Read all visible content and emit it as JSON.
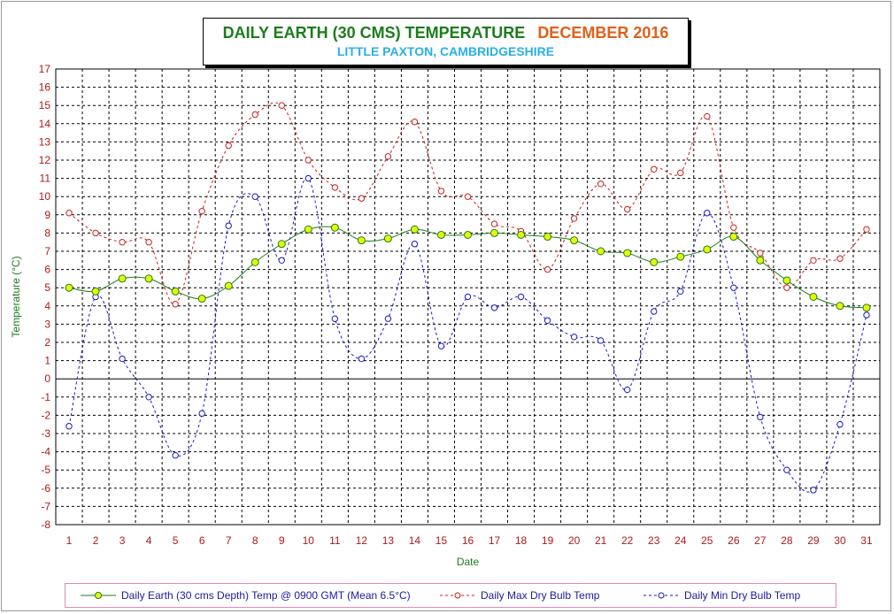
{
  "title": {
    "main": "DAILY EARTH (30 CMS) TEMPERATURE",
    "month": "DECEMBER 2016",
    "subtitle": "LITTLE PAXTON, CAMBRIDGESHIRE"
  },
  "colors": {
    "earth": "#1c7d1c",
    "earth_marker": "#e8ff00",
    "max": "#c82020",
    "min": "#1818c8",
    "axis_text": "#1c7d1c",
    "tick_text": "#b01818",
    "grid": "#000000"
  },
  "chart_data": {
    "type": "line",
    "xlabel": "Date",
    "ylabel": "Temperature (°C)",
    "x": [
      1,
      2,
      3,
      4,
      5,
      6,
      7,
      8,
      9,
      10,
      11,
      12,
      13,
      14,
      15,
      16,
      17,
      18,
      19,
      20,
      21,
      22,
      23,
      24,
      25,
      26,
      27,
      28,
      29,
      30,
      31
    ],
    "ylim": [
      -8,
      17
    ],
    "yticks": [
      17,
      16,
      15,
      14,
      13,
      12,
      11,
      10,
      9,
      8,
      7,
      6,
      5,
      4,
      3,
      2,
      1,
      0,
      -1,
      -2,
      -3,
      -4,
      -5,
      -6,
      -7,
      -8
    ],
    "grid": true,
    "legend_position": "bottom",
    "series": [
      {
        "name": "Daily Earth (30 cms Depth) Temp @ 0900 GMT (Mean 6.5°C)",
        "style": "solid",
        "values": [
          5.0,
          4.8,
          5.5,
          5.5,
          4.8,
          4.4,
          5.1,
          6.4,
          7.4,
          8.2,
          8.3,
          7.6,
          7.7,
          8.2,
          7.9,
          7.9,
          8.0,
          7.9,
          7.8,
          7.6,
          7.0,
          6.9,
          6.4,
          6.7,
          7.1,
          7.8,
          6.5,
          5.4,
          4.5,
          4.0,
          3.9
        ]
      },
      {
        "name": "Daily Max Dry Bulb Temp",
        "style": "dashed",
        "values": [
          9.1,
          8.0,
          7.5,
          7.5,
          4.1,
          9.2,
          12.8,
          14.5,
          15.0,
          12.0,
          10.5,
          9.9,
          12.2,
          14.1,
          10.3,
          10.0,
          8.5,
          8.1,
          6.0,
          8.8,
          10.7,
          9.3,
          11.5,
          11.3,
          14.4,
          8.3,
          6.9,
          5.0,
          6.5,
          6.6,
          8.2
        ]
      },
      {
        "name": "Daily Min Dry Bulb Temp",
        "style": "dashed",
        "values": [
          -2.6,
          4.5,
          1.1,
          -1.0,
          -4.2,
          -1.9,
          8.4,
          10.0,
          6.5,
          11.0,
          3.3,
          1.1,
          3.3,
          7.4,
          1.8,
          4.5,
          3.9,
          4.5,
          3.2,
          2.3,
          2.1,
          -0.6,
          3.7,
          4.8,
          9.1,
          5.0,
          -2.1,
          -5.0,
          -6.1,
          -2.5,
          3.5
        ]
      }
    ]
  }
}
